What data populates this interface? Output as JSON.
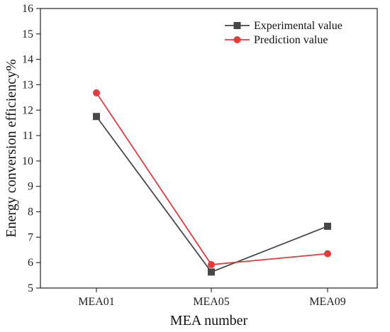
{
  "chart_data": {
    "type": "line",
    "categories": [
      "MEA01",
      "MEA05",
      "MEA09"
    ],
    "series": [
      {
        "name": "Experimental value",
        "values": [
          11.75,
          5.63,
          7.43
        ],
        "color": "#474747",
        "marker": "square"
      },
      {
        "name": "Prediction value",
        "values": [
          12.68,
          5.92,
          6.35
        ],
        "color": "#e53b3b",
        "marker": "circle"
      }
    ],
    "xlabel": "MEA number",
    "ylabel": "Energy conversion efficiency%",
    "ylim": [
      5,
      16
    ],
    "yticks": [
      5,
      6,
      7,
      8,
      9,
      10,
      11,
      12,
      13,
      14,
      15,
      16
    ],
    "grid": false,
    "legend_position": "top-right"
  }
}
